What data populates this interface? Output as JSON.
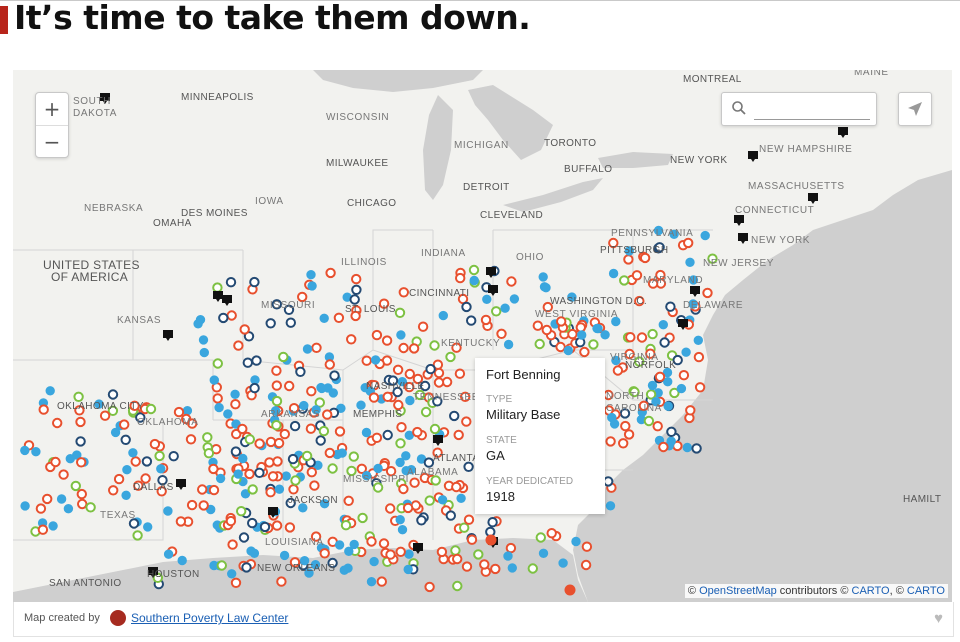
{
  "headline": "It’s time to take them down.",
  "colors": {
    "accent": "#b8251b",
    "red": "#e8502e",
    "blue": "#3aa6de",
    "navy": "#244a73",
    "green": "#7dc142",
    "black": "#111111"
  },
  "map": {
    "zoom_in": "+",
    "zoom_out": "−",
    "search": {
      "placeholder": ""
    },
    "labels": {
      "south_dakota": "SOUTH",
      "south_dakota2": "DAKOTA",
      "minneapolis": "MINNEAPOLIS",
      "wisconsin": "WISCONSIN",
      "michigan": "MICHIGAN",
      "montreal": "MONTREAL",
      "maine": "MAINE",
      "toronto": "TORONTO",
      "buffalo": "BUFFALO",
      "new_york_city": "NEW YORK",
      "new_hampshire": "NEW HAMPSHIRE",
      "milwaukee": "MILWAUKEE",
      "massachusetts": "MASSACHUSETTS",
      "detroit": "DETROIT",
      "connecticut": "CONNECTICUT",
      "nebraska": "NEBRASKA",
      "iowa": "IOWA",
      "des_moines": "DES MOINES",
      "omaha": "OMAHA",
      "chicago": "CHICAGO",
      "cleveland": "CLEVELAND",
      "pennsylvania": "PENNSYLVANIA",
      "pittsburgh": "PITTSBURGH",
      "new_york_state": "NEW YORK",
      "usa1": "UNITED STATES",
      "usa2": "OF AMERICA",
      "illinois": "ILLINOIS",
      "indiana": "INDIANA",
      "ohio": "OHIO",
      "new_jersey": "NEW JERSEY",
      "maryland": "MARYLAND",
      "missouri": "MISSOURI",
      "cincinnati": "CINCINNATI",
      "washington_dc": "WASHINGTON D.C.",
      "delaware": "DELAWARE",
      "kansas": "KANSAS",
      "st_louis": "ST. LOUIS",
      "west_virginia": "WEST VIRGINIA",
      "kentucky": "KENTUCKY",
      "virginia": "VIRGINIA",
      "norfolk": "NORFOLK",
      "nashville": "NASHVILLE",
      "oklahoma_city": "OKLAHOMA CITY",
      "oklahoma": "OKLAHOMA",
      "tennessee": "TENNESSEE",
      "north_carolina": "NORTH",
      "arkansas": "ARKANSAS",
      "memphis": "MEMPHIS",
      "carolina": "CAROLINA",
      "atlanta": "ATLANTA",
      "alabama": "ALABAMA",
      "mississippi": "MISSISSIPPI",
      "dallas": "DALLAS",
      "jackson": "JACKSON",
      "texas": "TEXAS",
      "louisiana": "LOUISIANA",
      "houston": "HOUSTON",
      "new_orleans": "NEW ORLEANS",
      "san_antonio": "SAN ANTONIO",
      "hamilton": "HAMILT"
    },
    "popup": {
      "title": "Fort Benning",
      "type_label": "TYPE",
      "type_value": "Military Base",
      "state_label": "STATE",
      "state_value": "GA",
      "year_label": "YEAR DEDICATED",
      "year_value": "1918"
    },
    "attribution": {
      "prefix": "©",
      "osm": "OpenStreetMap",
      "middle": "contributors ©",
      "carto1": "CARTO",
      "sep": ", ©",
      "carto2": "CARTO"
    }
  },
  "footer": {
    "credit": "Map created by",
    "org": "Southern Poverty Law Center"
  }
}
